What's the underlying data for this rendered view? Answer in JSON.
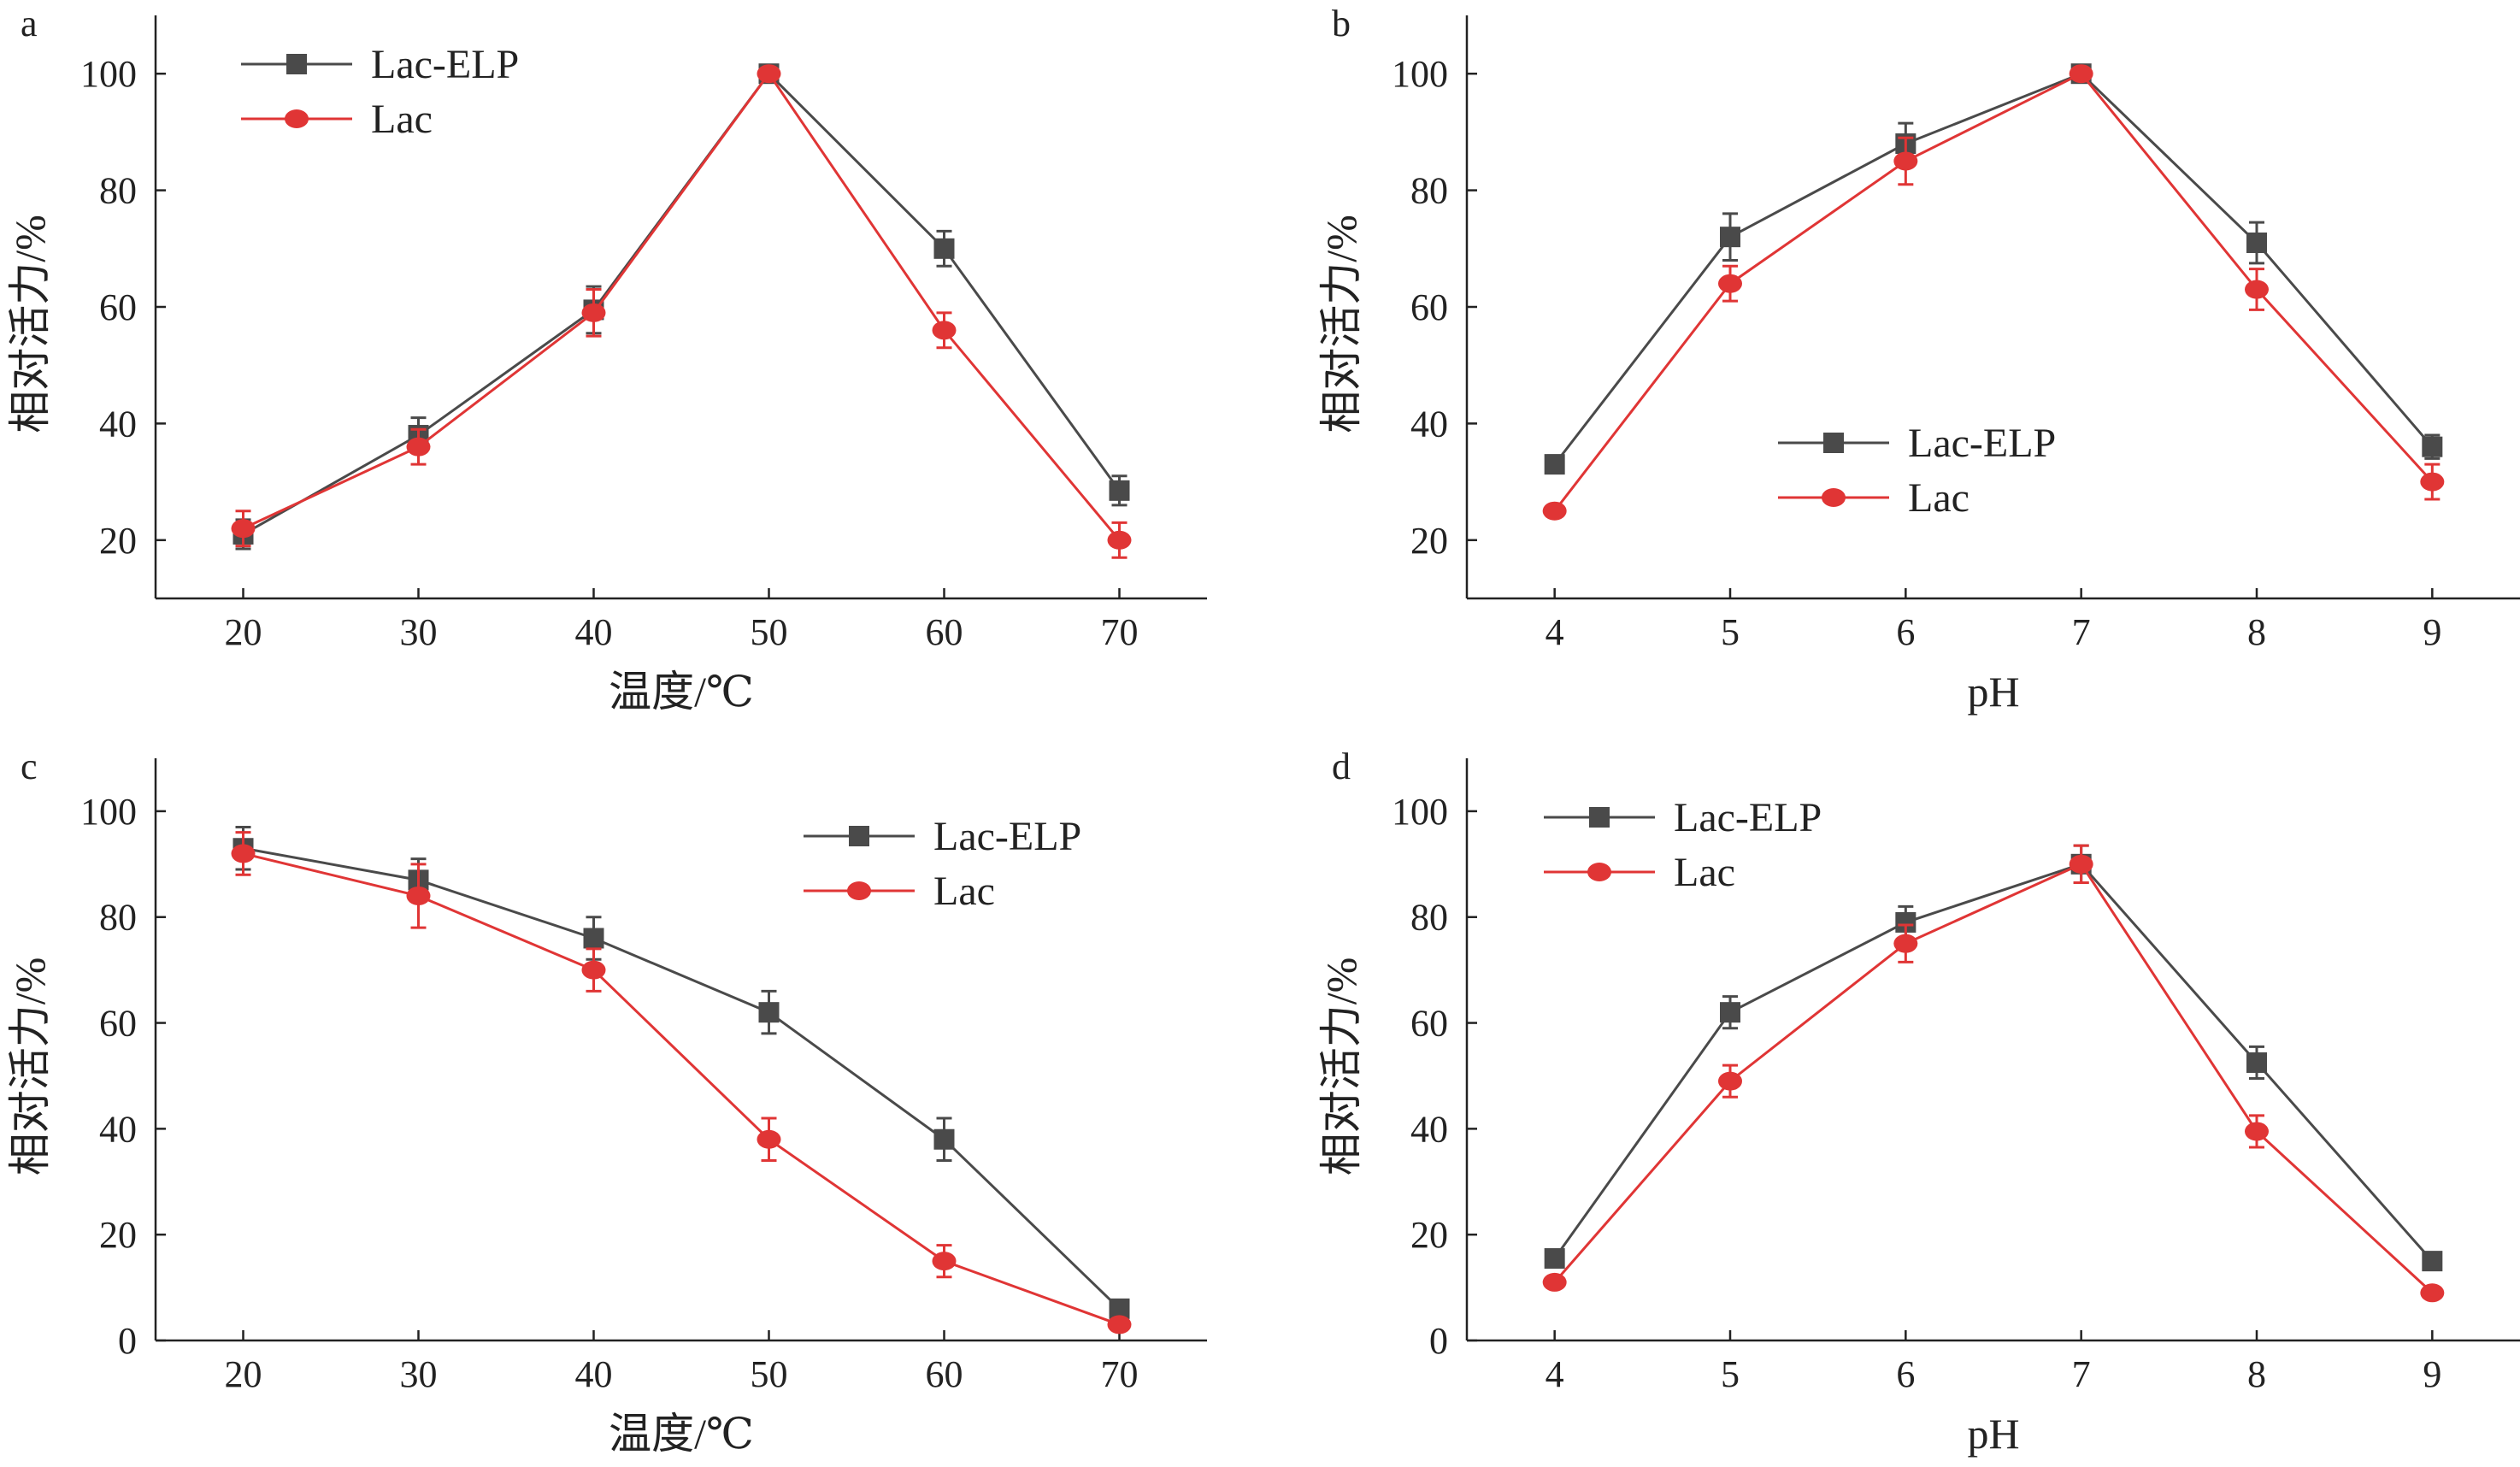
{
  "chart_data": [
    {
      "type": "line",
      "panel_label": "a",
      "xlabel": "温度/℃",
      "ylabel": "相对活力/%",
      "categories": [
        "20",
        "30",
        "40",
        "50",
        "60",
        "70"
      ],
      "x": [
        20,
        30,
        40,
        50,
        60,
        70
      ],
      "xlim": [
        15,
        75
      ],
      "ylim": [
        10,
        110
      ],
      "yticks": [
        20,
        40,
        60,
        80,
        100
      ],
      "legend_position": "top-left",
      "series": [
        {
          "name": "Lac-ELP",
          "marker": "square",
          "color": "#4a4a4a",
          "values": [
            21,
            38,
            59.5,
            100,
            70,
            28.5
          ],
          "errors": [
            2.5,
            3,
            4,
            0.5,
            3,
            2.5
          ]
        },
        {
          "name": "Lac",
          "marker": "circle",
          "color": "#e03535",
          "values": [
            22,
            36,
            59,
            100,
            56,
            20
          ],
          "errors": [
            3,
            3,
            4,
            0.5,
            3,
            3
          ]
        }
      ]
    },
    {
      "type": "line",
      "panel_label": "b",
      "xlabel": "pH",
      "ylabel": "相对活力/%",
      "categories": [
        "4",
        "5",
        "6",
        "7",
        "8",
        "9"
      ],
      "x": [
        4,
        5,
        6,
        7,
        8,
        9
      ],
      "xlim": [
        3.5,
        9.5
      ],
      "ylim": [
        10,
        110
      ],
      "yticks": [
        20,
        40,
        60,
        80,
        100
      ],
      "legend_position": "center",
      "series": [
        {
          "name": "Lac-ELP",
          "marker": "square",
          "color": "#4a4a4a",
          "values": [
            33,
            72,
            88,
            100,
            71,
            36
          ],
          "errors": [
            1.5,
            4,
            3.5,
            1,
            3.5,
            2
          ]
        },
        {
          "name": "Lac",
          "marker": "circle",
          "color": "#e03535",
          "values": [
            25,
            64,
            85,
            100,
            63,
            30
          ],
          "errors": [
            1,
            3,
            4,
            1,
            3.5,
            3
          ]
        }
      ]
    },
    {
      "type": "line",
      "panel_label": "c",
      "xlabel": "温度/℃",
      "ylabel": "相对活力/%",
      "categories": [
        "20",
        "30",
        "40",
        "50",
        "60",
        "70"
      ],
      "x": [
        20,
        30,
        40,
        50,
        60,
        70
      ],
      "xlim": [
        15,
        75
      ],
      "ylim": [
        0,
        110
      ],
      "yticks": [
        0,
        20,
        40,
        60,
        80,
        100
      ],
      "legend_position": "top-right",
      "series": [
        {
          "name": "Lac-ELP",
          "marker": "square",
          "color": "#4a4a4a",
          "values": [
            93,
            87,
            76,
            62,
            38,
            6
          ],
          "errors": [
            4,
            4,
            4,
            4,
            4,
            1
          ]
        },
        {
          "name": "Lac",
          "marker": "circle",
          "color": "#e03535",
          "values": [
            92,
            84,
            70,
            38,
            15,
            3
          ],
          "errors": [
            4,
            6,
            4,
            4,
            3,
            1
          ]
        }
      ]
    },
    {
      "type": "line",
      "panel_label": "d",
      "xlabel": "pH",
      "ylabel": "相对活力/%",
      "categories": [
        "4",
        "5",
        "6",
        "7",
        "8",
        "9"
      ],
      "x": [
        4,
        5,
        6,
        7,
        8,
        9
      ],
      "xlim": [
        3.5,
        9.5
      ],
      "ylim": [
        0,
        110
      ],
      "yticks": [
        0,
        20,
        40,
        60,
        80,
        100
      ],
      "legend_position": "top-left",
      "series": [
        {
          "name": "Lac-ELP",
          "marker": "square",
          "color": "#4a4a4a",
          "values": [
            15.5,
            62,
            79,
            90,
            52.5,
            15
          ],
          "errors": [
            1.5,
            3,
            3,
            3.5,
            3,
            1
          ]
        },
        {
          "name": "Lac",
          "marker": "circle",
          "color": "#e03535",
          "values": [
            11,
            49,
            75,
            90,
            39.5,
            9
          ],
          "errors": [
            1,
            3,
            3.5,
            3.5,
            3,
            1
          ]
        }
      ]
    }
  ]
}
